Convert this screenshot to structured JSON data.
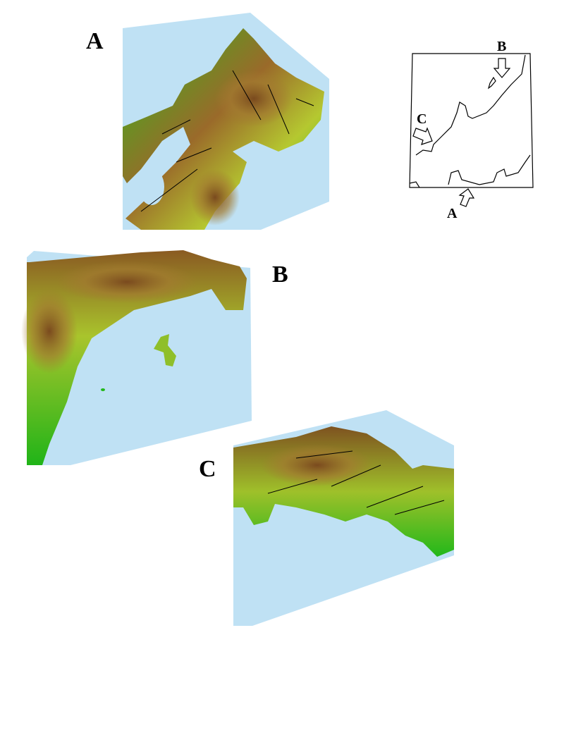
{
  "panels": [
    {
      "label": "A"
    },
    {
      "label": "B"
    },
    {
      "label": "C"
    }
  ],
  "inset_map": {
    "arrow_labels": [
      "A",
      "B",
      "C"
    ]
  },
  "colors": {
    "sea": "#bfe1f4",
    "lowland": "#22b81a",
    "midland": "#a8c828",
    "highland": "#8a5a22",
    "fault_lines": "#000000"
  }
}
